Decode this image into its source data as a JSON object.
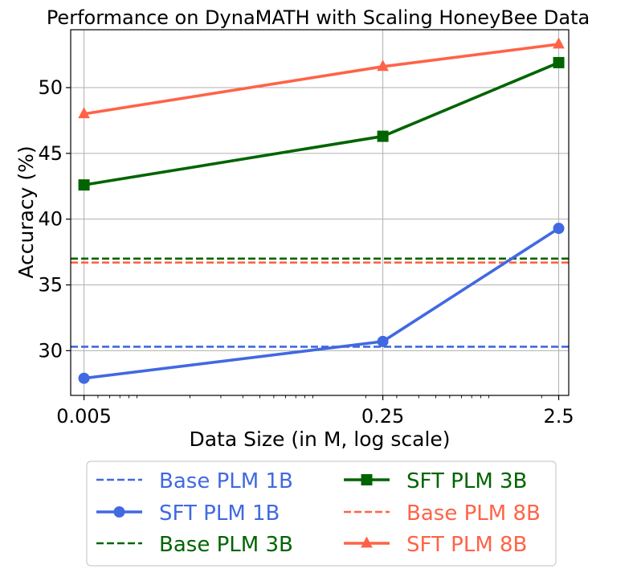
{
  "chart_data": {
    "type": "line",
    "title": "Performance on DynaMATH with Scaling HoneyBee Data",
    "xlabel": "Data Size (in M, log scale)",
    "ylabel": "Accuracy (%)",
    "xscale": "log",
    "x": [
      0.005,
      0.25,
      2.5
    ],
    "xtick_labels": [
      "0.005",
      "0.25",
      "2.5"
    ],
    "xlim": [
      0.0042,
      2.85
    ],
    "ylim": [
      26.6,
      54.4
    ],
    "yticks": [
      30,
      35,
      40,
      45,
      50
    ],
    "ytick_labels": [
      "30",
      "35",
      "40",
      "45",
      "50"
    ],
    "grid": true,
    "legend_position": "below plot, two columns",
    "series": [
      {
        "name": "Base PLM 1B",
        "kind": "baseline",
        "value": 30.3,
        "color": "#4169e1",
        "style": "dashed"
      },
      {
        "name": "SFT PLM 1B",
        "kind": "line",
        "values": [
          27.9,
          30.7,
          39.3
        ],
        "color": "#4169e1",
        "marker": "circle"
      },
      {
        "name": "Base PLM 3B",
        "kind": "baseline",
        "value": 37.0,
        "color": "#006400",
        "style": "dashed"
      },
      {
        "name": "SFT PLM 3B",
        "kind": "line",
        "values": [
          42.6,
          46.3,
          51.9
        ],
        "color": "#006400",
        "marker": "square"
      },
      {
        "name": "Base PLM 8B",
        "kind": "baseline",
        "value": 36.7,
        "color": "#ff6347",
        "style": "dashed"
      },
      {
        "name": "SFT PLM 8B",
        "kind": "line",
        "values": [
          48.0,
          51.6,
          53.3
        ],
        "color": "#ff6347",
        "marker": "triangle"
      }
    ],
    "legend_order": [
      "Base PLM 1B",
      "SFT PLM 1B",
      "Base PLM 3B",
      "SFT PLM 3B",
      "Base PLM 8B",
      "SFT PLM 8B"
    ]
  }
}
